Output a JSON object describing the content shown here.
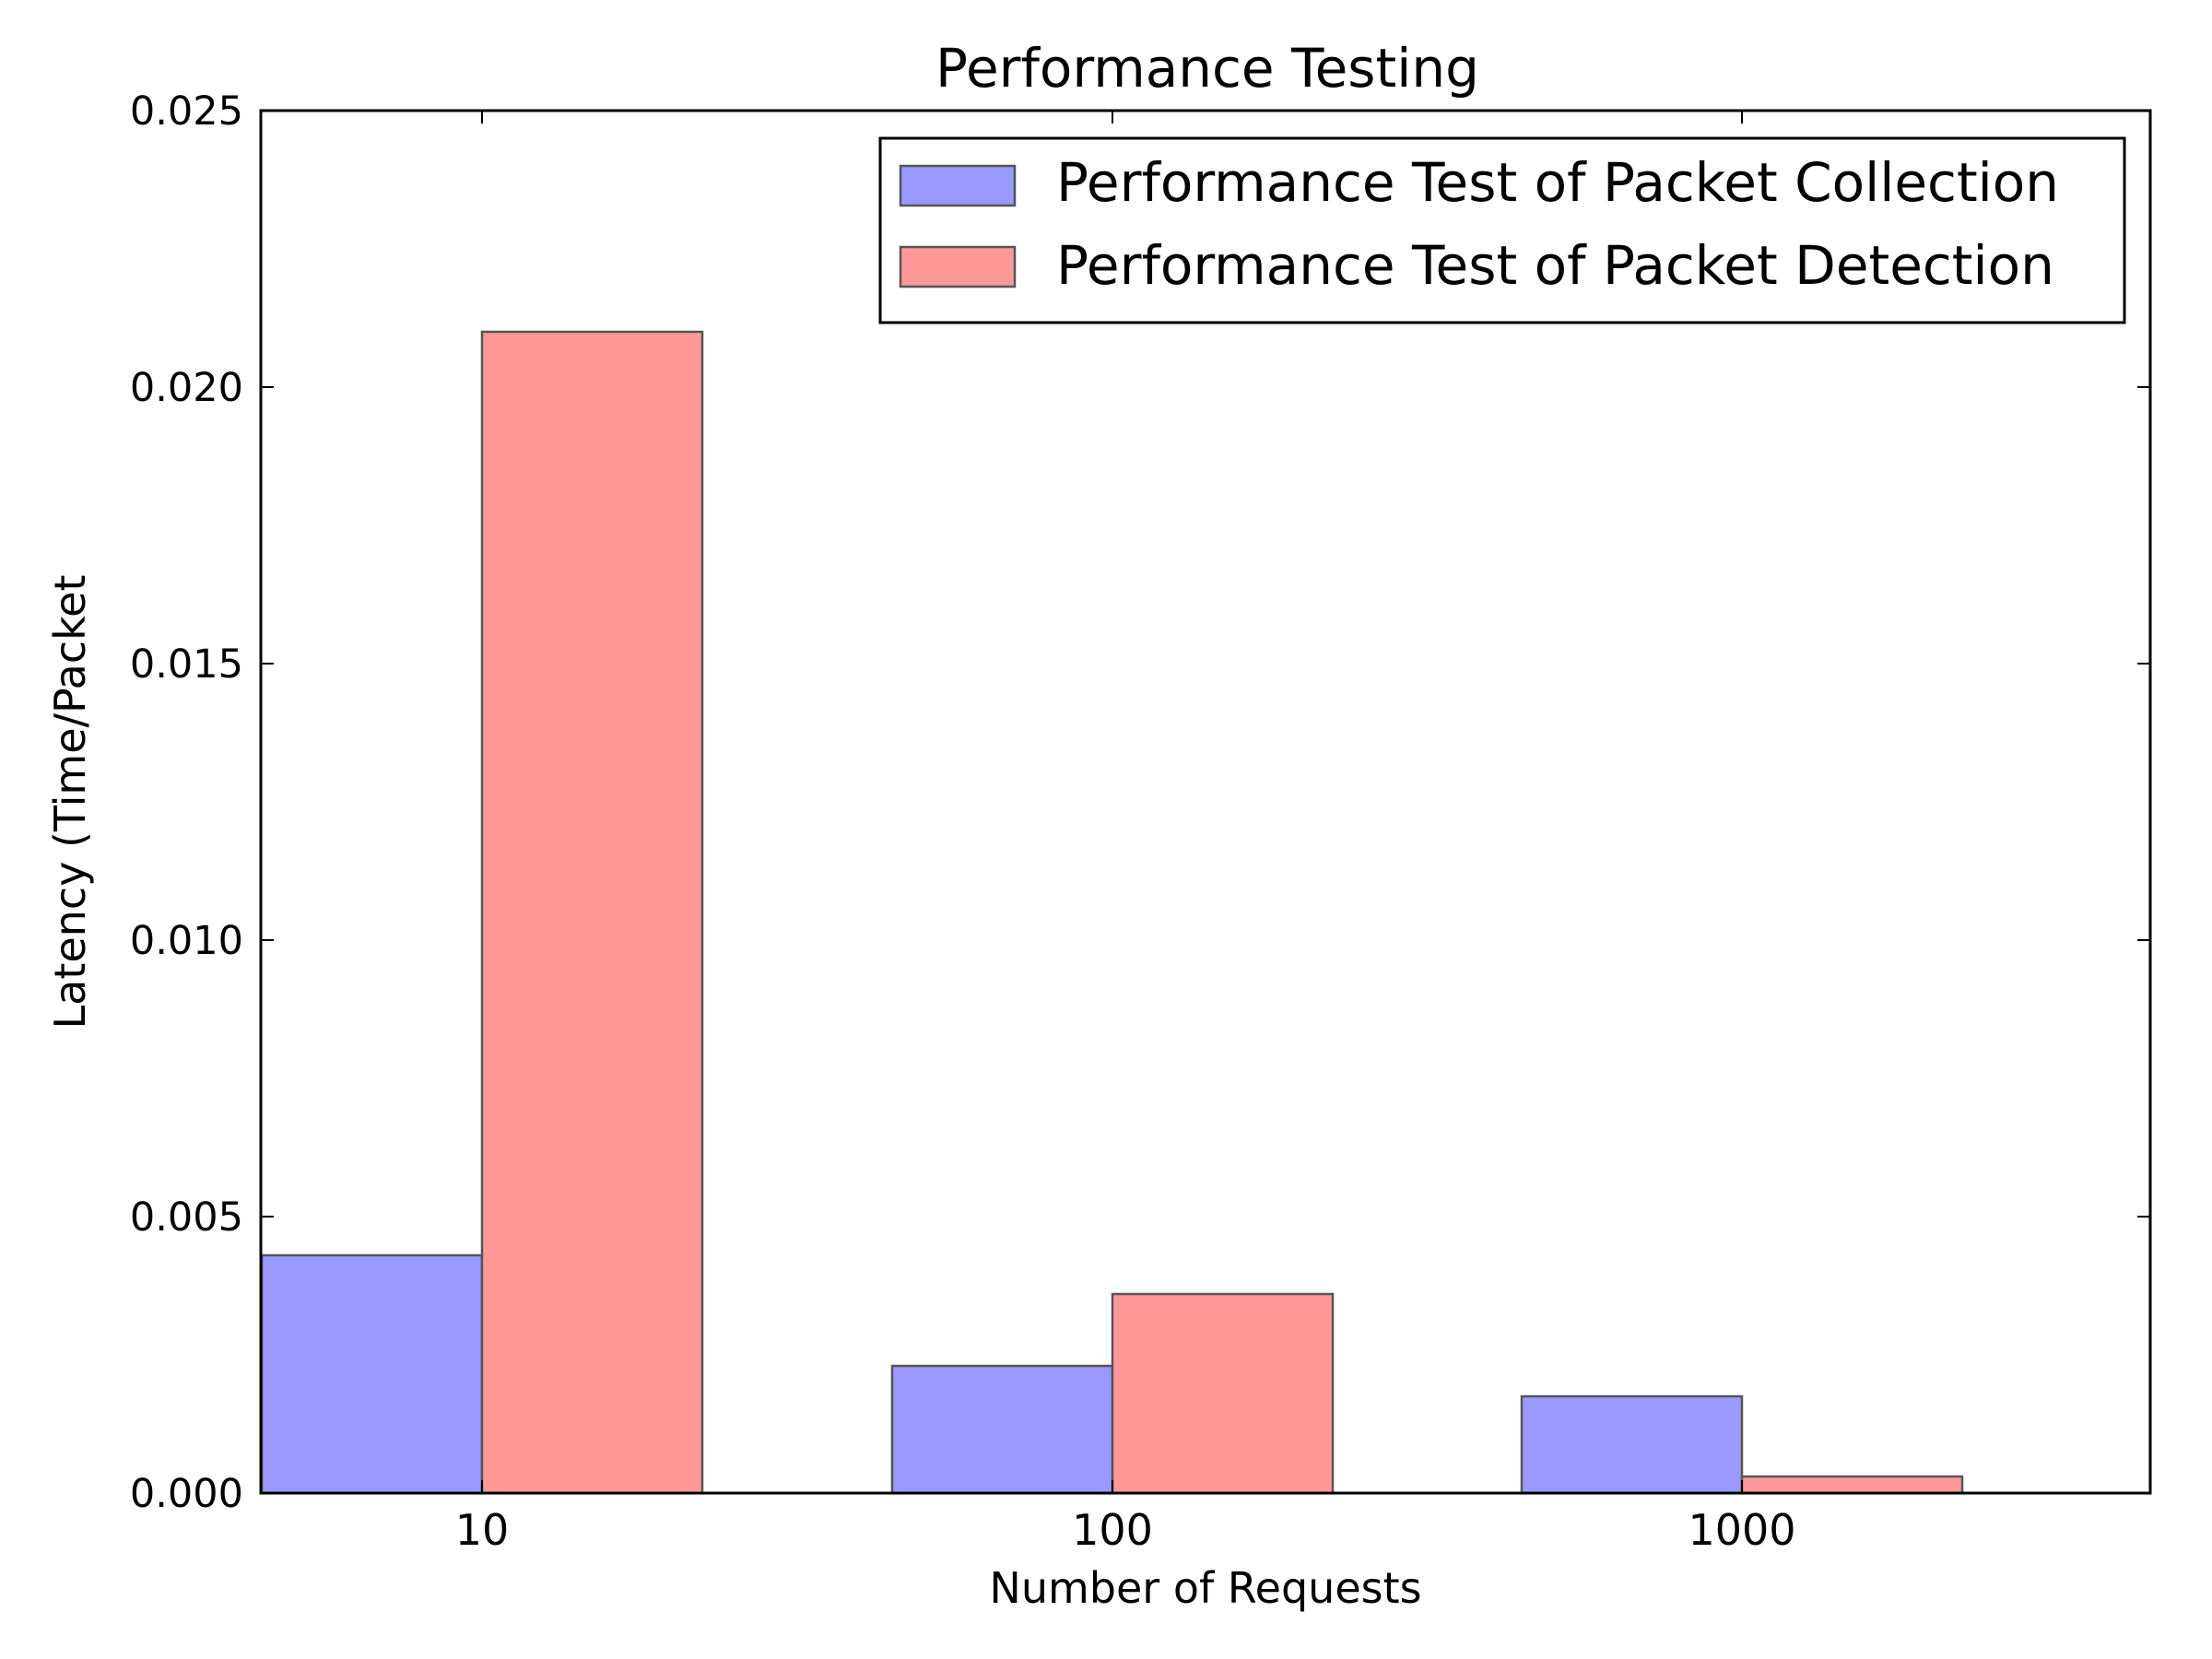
{
  "chart_data": {
    "type": "bar",
    "title": "Performance Testing",
    "xlabel": "Number of Requests",
    "ylabel": "Latency (Time/Packet",
    "categories": [
      "10",
      "100",
      "1000"
    ],
    "series": [
      {
        "name": "Performance Test of Packet Collection",
        "values": [
          0.0043,
          0.0023,
          0.00175
        ],
        "color": "#9999ff"
      },
      {
        "name": "Performance Test of Packet Detection",
        "values": [
          0.021,
          0.0036,
          0.0003
        ],
        "color": "#ff9999"
      }
    ],
    "ylim": [
      0,
      0.025
    ],
    "yticks": [
      "0.000",
      "0.005",
      "0.010",
      "0.015",
      "0.020",
      "0.025"
    ],
    "grid": false,
    "legend_position": "top-right",
    "bar_edge_color": "#555555",
    "axis_color": "#000000"
  }
}
